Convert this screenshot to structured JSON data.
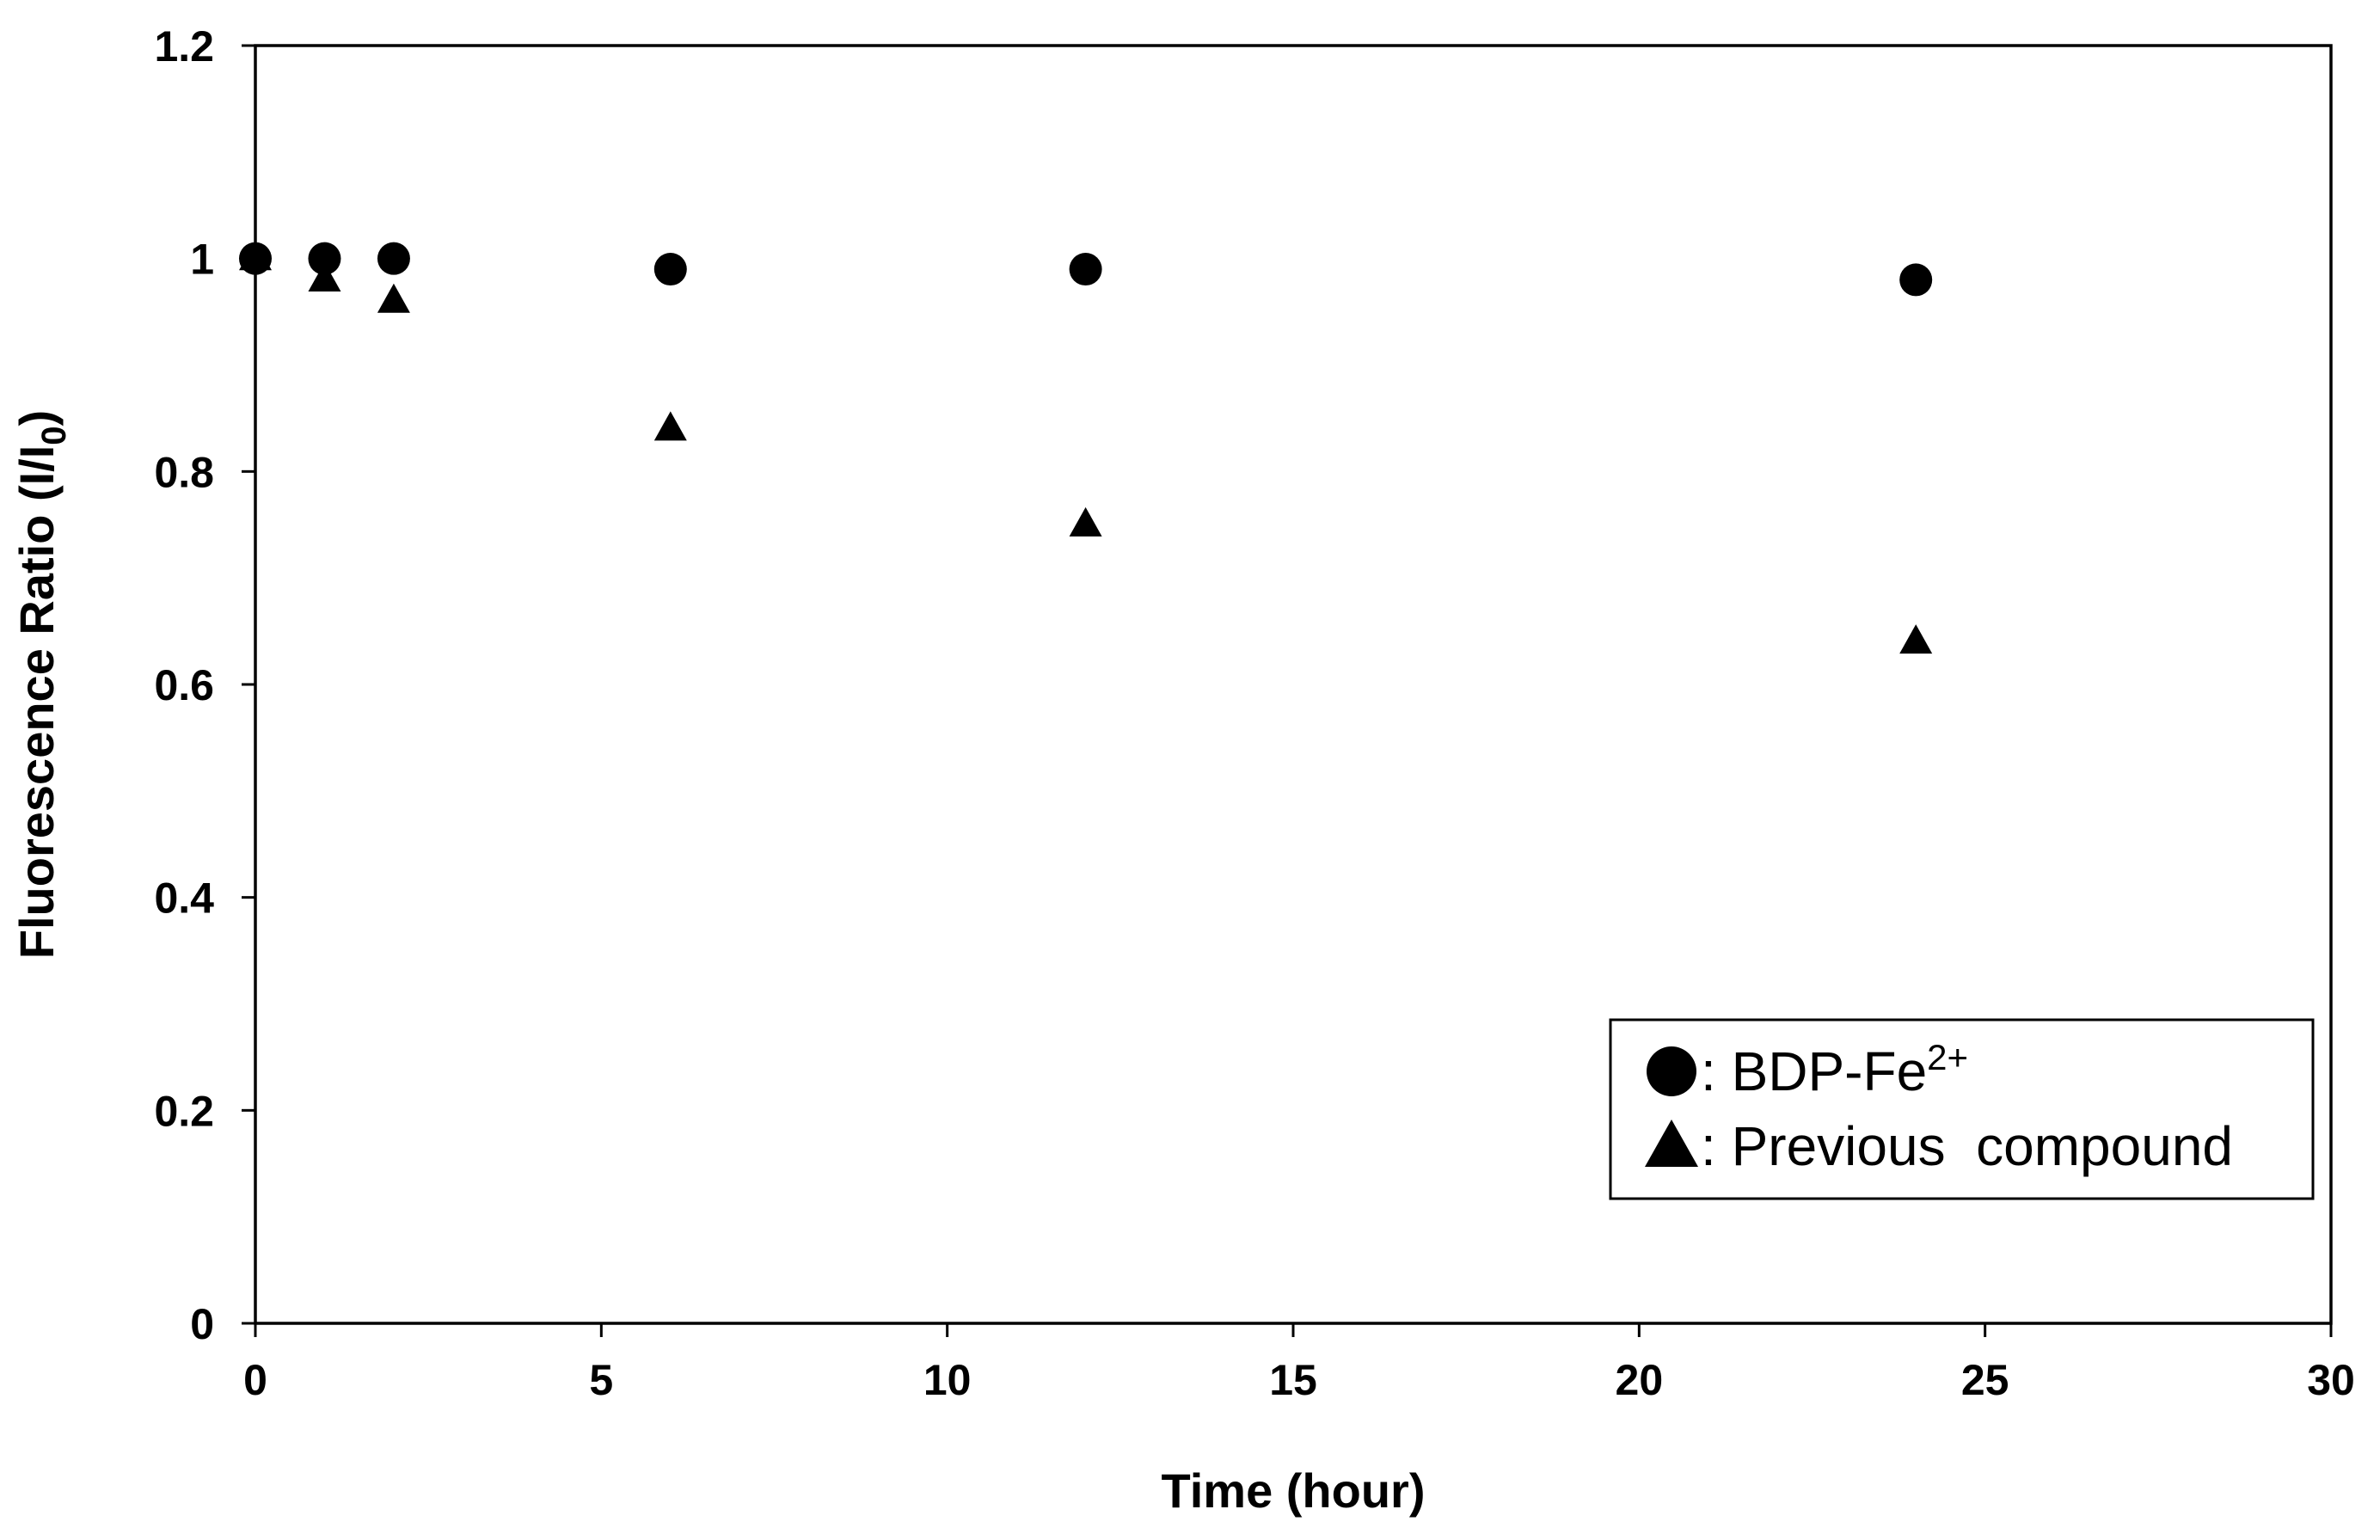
{
  "chart_data": {
    "type": "scatter",
    "xlabel": "Time (hour)",
    "ylabel": {
      "main": "Fluorescence Ratio (I/I",
      "sub": "0",
      "end": ")"
    },
    "xlim": [
      0,
      30
    ],
    "ylim": [
      0,
      1.2
    ],
    "xticks": [
      0,
      5,
      10,
      15,
      20,
      25,
      30
    ],
    "yticks": [
      0,
      0.2,
      0.4,
      0.6,
      0.8,
      1,
      1.2
    ],
    "xtick_labels": [
      "0",
      "5",
      "10",
      "15",
      "20",
      "25",
      "30"
    ],
    "ytick_labels": [
      "0",
      "0.2",
      "0.4",
      "0.6",
      "0.8",
      "1",
      "1.2"
    ],
    "grid": false,
    "legend_position": "bottom-right",
    "series": [
      {
        "name": "BDP-Fe2+",
        "legend": {
          "prefix": ": BDP-Fe",
          "sup": "2+"
        },
        "marker": "circle",
        "color": "#000000",
        "x": [
          0,
          1,
          2,
          6,
          12,
          24
        ],
        "y": [
          1.0,
          1.0,
          1.0,
          0.99,
          0.99,
          0.98
        ]
      },
      {
        "name": "Previous compound",
        "legend": {
          "prefix": ": Previous  compound",
          "sup": ""
        },
        "marker": "triangle",
        "color": "#000000",
        "x": [
          0,
          1,
          2,
          6,
          12,
          24
        ],
        "y": [
          1.0,
          0.98,
          0.96,
          0.84,
          0.75,
          0.64
        ]
      }
    ]
  }
}
